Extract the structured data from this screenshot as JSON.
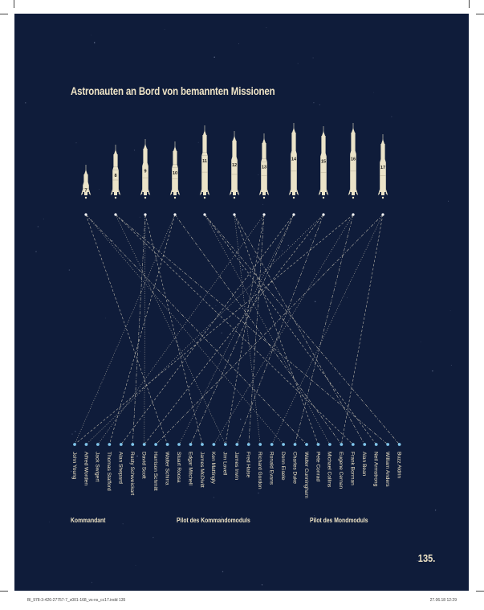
{
  "title": "Astronauten an Bord von bemannten Missionen",
  "page_number": "135.",
  "footer": {
    "file": "Bl_978-3-426-27757-7_s001-168_vs-ns_cc17.indd   135",
    "date": "27.06.18   12:29"
  },
  "colors": {
    "background": "#0f1c3a",
    "text": "#efe4c6",
    "rocket": "#ebe3c8",
    "line": "#d7d0bd",
    "node": "#7fc4ea"
  },
  "legend": [
    {
      "label": "Kommandant",
      "style": "dashed"
    },
    {
      "label": "Pilot des Kommandomoduls",
      "style": "dotted"
    },
    {
      "label": "Pilot des Mondmoduls",
      "style": "dash-dot"
    }
  ],
  "missions": [
    {
      "number": "7",
      "commander": "Walter Schirra",
      "cm_pilot": "Donn Eisele",
      "lm_pilot": "Walter Cunningham"
    },
    {
      "number": "8",
      "commander": "Frank Borman",
      "cm_pilot": "James Lovell",
      "lm_pilot": "William Anders"
    },
    {
      "number": "9",
      "commander": "James McDivitt",
      "cm_pilot": "David Scott",
      "lm_pilot": "Rusty Schweickart"
    },
    {
      "number": "10",
      "commander": "Thomas Stafford",
      "cm_pilot": "John Young",
      "lm_pilot": "Eugene Cernan"
    },
    {
      "number": "11",
      "commander": "Neil Armstrong",
      "cm_pilot": "Michael Collins",
      "lm_pilot": "Buzz Aldrin"
    },
    {
      "number": "12",
      "commander": "Pete Conrad",
      "cm_pilot": "Richard Gordon",
      "lm_pilot": "Alan Bean"
    },
    {
      "number": "13",
      "commander": "James Lovell",
      "cm_pilot": "Jack Swigert",
      "lm_pilot": "Fred Haise"
    },
    {
      "number": "14",
      "commander": "Alan Shepard",
      "cm_pilot": "Stuart Roosa",
      "lm_pilot": "Edgar Mitchell"
    },
    {
      "number": "15",
      "commander": "David Scott",
      "cm_pilot": "Alfred Worden",
      "lm_pilot": "James Irwin"
    },
    {
      "number": "16",
      "commander": "John Young",
      "cm_pilot": "Ken Mattingly",
      "lm_pilot": "Charles Duke"
    },
    {
      "number": "17",
      "commander": "Eugene Cernan",
      "cm_pilot": "Ronald Evans",
      "lm_pilot": "Harrison Schmitt"
    }
  ],
  "astronauts": [
    "John Young",
    "Alfred Worden",
    "Jack Swigert",
    "Thomas Stafford",
    "Alan Shepard",
    "Rusty Schweickart",
    "David Scott",
    "Harrison Schmitt",
    "Walter Schirra",
    "Stuart Roosa",
    "Edgar Mitchell",
    "James McDivitt",
    "Ken Mattingly",
    "Jim Lovell",
    "James Irwin",
    "Fred Haise",
    "Richard Gordon",
    "Ronald Evans",
    "Donn Eisele",
    "Charles Duke",
    "Walter Cunningham",
    "Pete Conrad",
    "Michael Collins",
    "Eugene Cernan",
    "Frank Borman",
    "Alan Bean",
    "Neil Armstrong",
    "William Anders",
    "Buzz Aldrin"
  ]
}
